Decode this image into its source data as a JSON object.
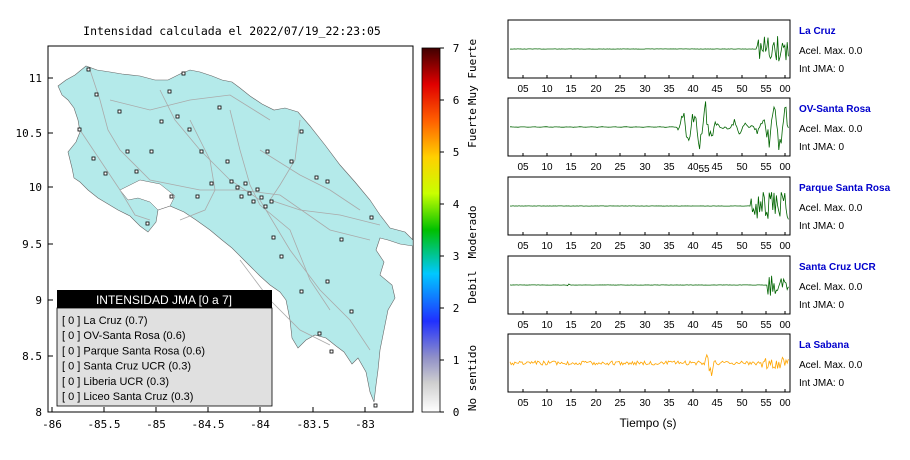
{
  "map": {
    "title": "Intensidad calculada el 2022/07/19_22:23:05",
    "x_ticks": [
      "-86",
      "-85.5",
      "-85",
      "-84.5",
      "-84",
      "-83.5",
      "-83"
    ],
    "y_ticks": [
      "11",
      "10.5",
      "10",
      "9.5",
      "9",
      "8.5",
      "8"
    ],
    "legend": {
      "header": "INTENSIDAD JMA [0 a 7]",
      "entries": [
        "[ 0 ]  La Cruz (0.7)",
        "[ 0 ]  OV-Santa Rosa (0.6)",
        "[ 0 ]  Parque Santa Rosa (0.6)",
        "[ 0 ]  Santa Cruz UCR (0.3)",
        "[ 0 ]  Liberia UCR (0.3)",
        "[ 0 ]  Liceo Santa Cruz (0.3)"
      ]
    },
    "colorbar": {
      "ticks": [
        "7",
        "6",
        "5",
        "4",
        "3",
        "2",
        "1",
        "0"
      ],
      "labels": [
        "Muy Fuerte",
        "Fuerte",
        "Moderado",
        "Debil",
        "No sentido"
      ]
    },
    "colors": {
      "land": "#b4eaea",
      "sea": "#ffffff",
      "roads": "#aaaaaa"
    }
  },
  "traces": {
    "x_ticks": [
      "05",
      "10",
      "15",
      "20",
      "25",
      "30",
      "35",
      "40",
      "45",
      "50",
      "55",
      "00"
    ],
    "x_axis_label": "Tiempo (s)",
    "extra_tick_label": "55",
    "stations": [
      {
        "name": "La Cruz",
        "acel": "Acel. Max. 0.0",
        "int": "Int JMA: 0",
        "color": "#006400"
      },
      {
        "name": "OV-Santa Rosa",
        "acel": "Acel. Max. 0.0",
        "int": "Int JMA: 0",
        "color": "#006400"
      },
      {
        "name": "Parque Santa Rosa",
        "acel": "Acel. Max. 0.0",
        "int": "Int JMA: 0",
        "color": "#006400"
      },
      {
        "name": "Santa Cruz UCR",
        "acel": "Acel. Max. 0.0",
        "int": "Int JMA: 0",
        "color": "#006400"
      },
      {
        "name": "La Sabana",
        "acel": "Acel. Max. 0.0",
        "int": "Int JMA: 0",
        "color": "#ffa500"
      }
    ],
    "name_color": "#0000cc"
  }
}
